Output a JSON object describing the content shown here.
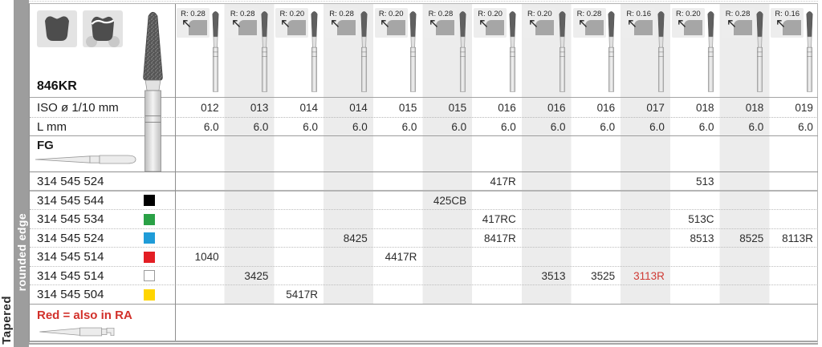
{
  "sidebar": {
    "category": "Tapered",
    "subcategory": "rounded edge"
  },
  "product": {
    "code": "846KR"
  },
  "row_labels": {
    "iso": "ISO ø 1/10 mm",
    "length": "L mm",
    "shank": "FG"
  },
  "header": {
    "radii": [
      "R: 0.28",
      "R: 0.28",
      "R: 0.20",
      "R: 0.28",
      "R: 0.20",
      "R: 0.28",
      "R: 0.20",
      "R: 0.20",
      "R: 0.28",
      "R: 0.16",
      "R: 0.20",
      "R: 0.28",
      "R: 0.16"
    ]
  },
  "iso_values": [
    "012",
    "013",
    "014",
    "014",
    "015",
    "015",
    "016",
    "016",
    "016",
    "017",
    "018",
    "018",
    "019"
  ],
  "length_values": [
    "6.0",
    "6.0",
    "6.0",
    "6.0",
    "6.0",
    "6.0",
    "6.0",
    "6.0",
    "6.0",
    "6.0",
    "6.0",
    "6.0",
    "6.0"
  ],
  "order_rows": [
    {
      "code": "314 545 524",
      "square": null,
      "values": [
        "",
        "",
        "",
        "",
        "",
        "",
        "417R",
        "",
        "",
        "",
        "513",
        "",
        ""
      ]
    },
    {
      "code": "314 545 544",
      "square": "#000000",
      "values": [
        "",
        "",
        "",
        "",
        "",
        "425CB",
        "",
        "",
        "",
        "",
        "",
        "",
        ""
      ]
    },
    {
      "code": "314 545 534",
      "square": "#2aa146",
      "values": [
        "",
        "",
        "",
        "",
        "",
        "",
        "417RC",
        "",
        "",
        "",
        "513C",
        "",
        ""
      ]
    },
    {
      "code": "314 545 524",
      "square": "#1f9cd8",
      "values": [
        "",
        "",
        "",
        "8425",
        "",
        "",
        "8417R",
        "",
        "",
        "",
        "8513",
        "8525",
        "8113R"
      ]
    },
    {
      "code": "314 545 514",
      "square": "#e31e24",
      "values": [
        "1040",
        "",
        "",
        "",
        "4417R",
        "",
        "",
        "",
        "",
        "",
        "",
        "",
        ""
      ]
    },
    {
      "code": "314 545 514",
      "square": "#ffffff",
      "values": [
        "",
        "3425",
        "",
        "",
        "",
        "",
        "",
        "3513",
        "3525",
        "3113R",
        "",
        "",
        ""
      ]
    },
    {
      "code": "314 545 504",
      "square": "#ffd500",
      "values": [
        "",
        "",
        "5417R",
        "",
        "",
        "",
        "",
        "",
        "",
        "",
        "",
        "",
        ""
      ]
    }
  ],
  "red_cell": {
    "row": 5,
    "col": 9,
    "color": "#cf3a34"
  },
  "footnote": "Red = also in RA",
  "colors": {
    "footnote_red": "#d2312b",
    "band_gray": "#ececec",
    "sidebar_gray": "#9d9d9d"
  }
}
